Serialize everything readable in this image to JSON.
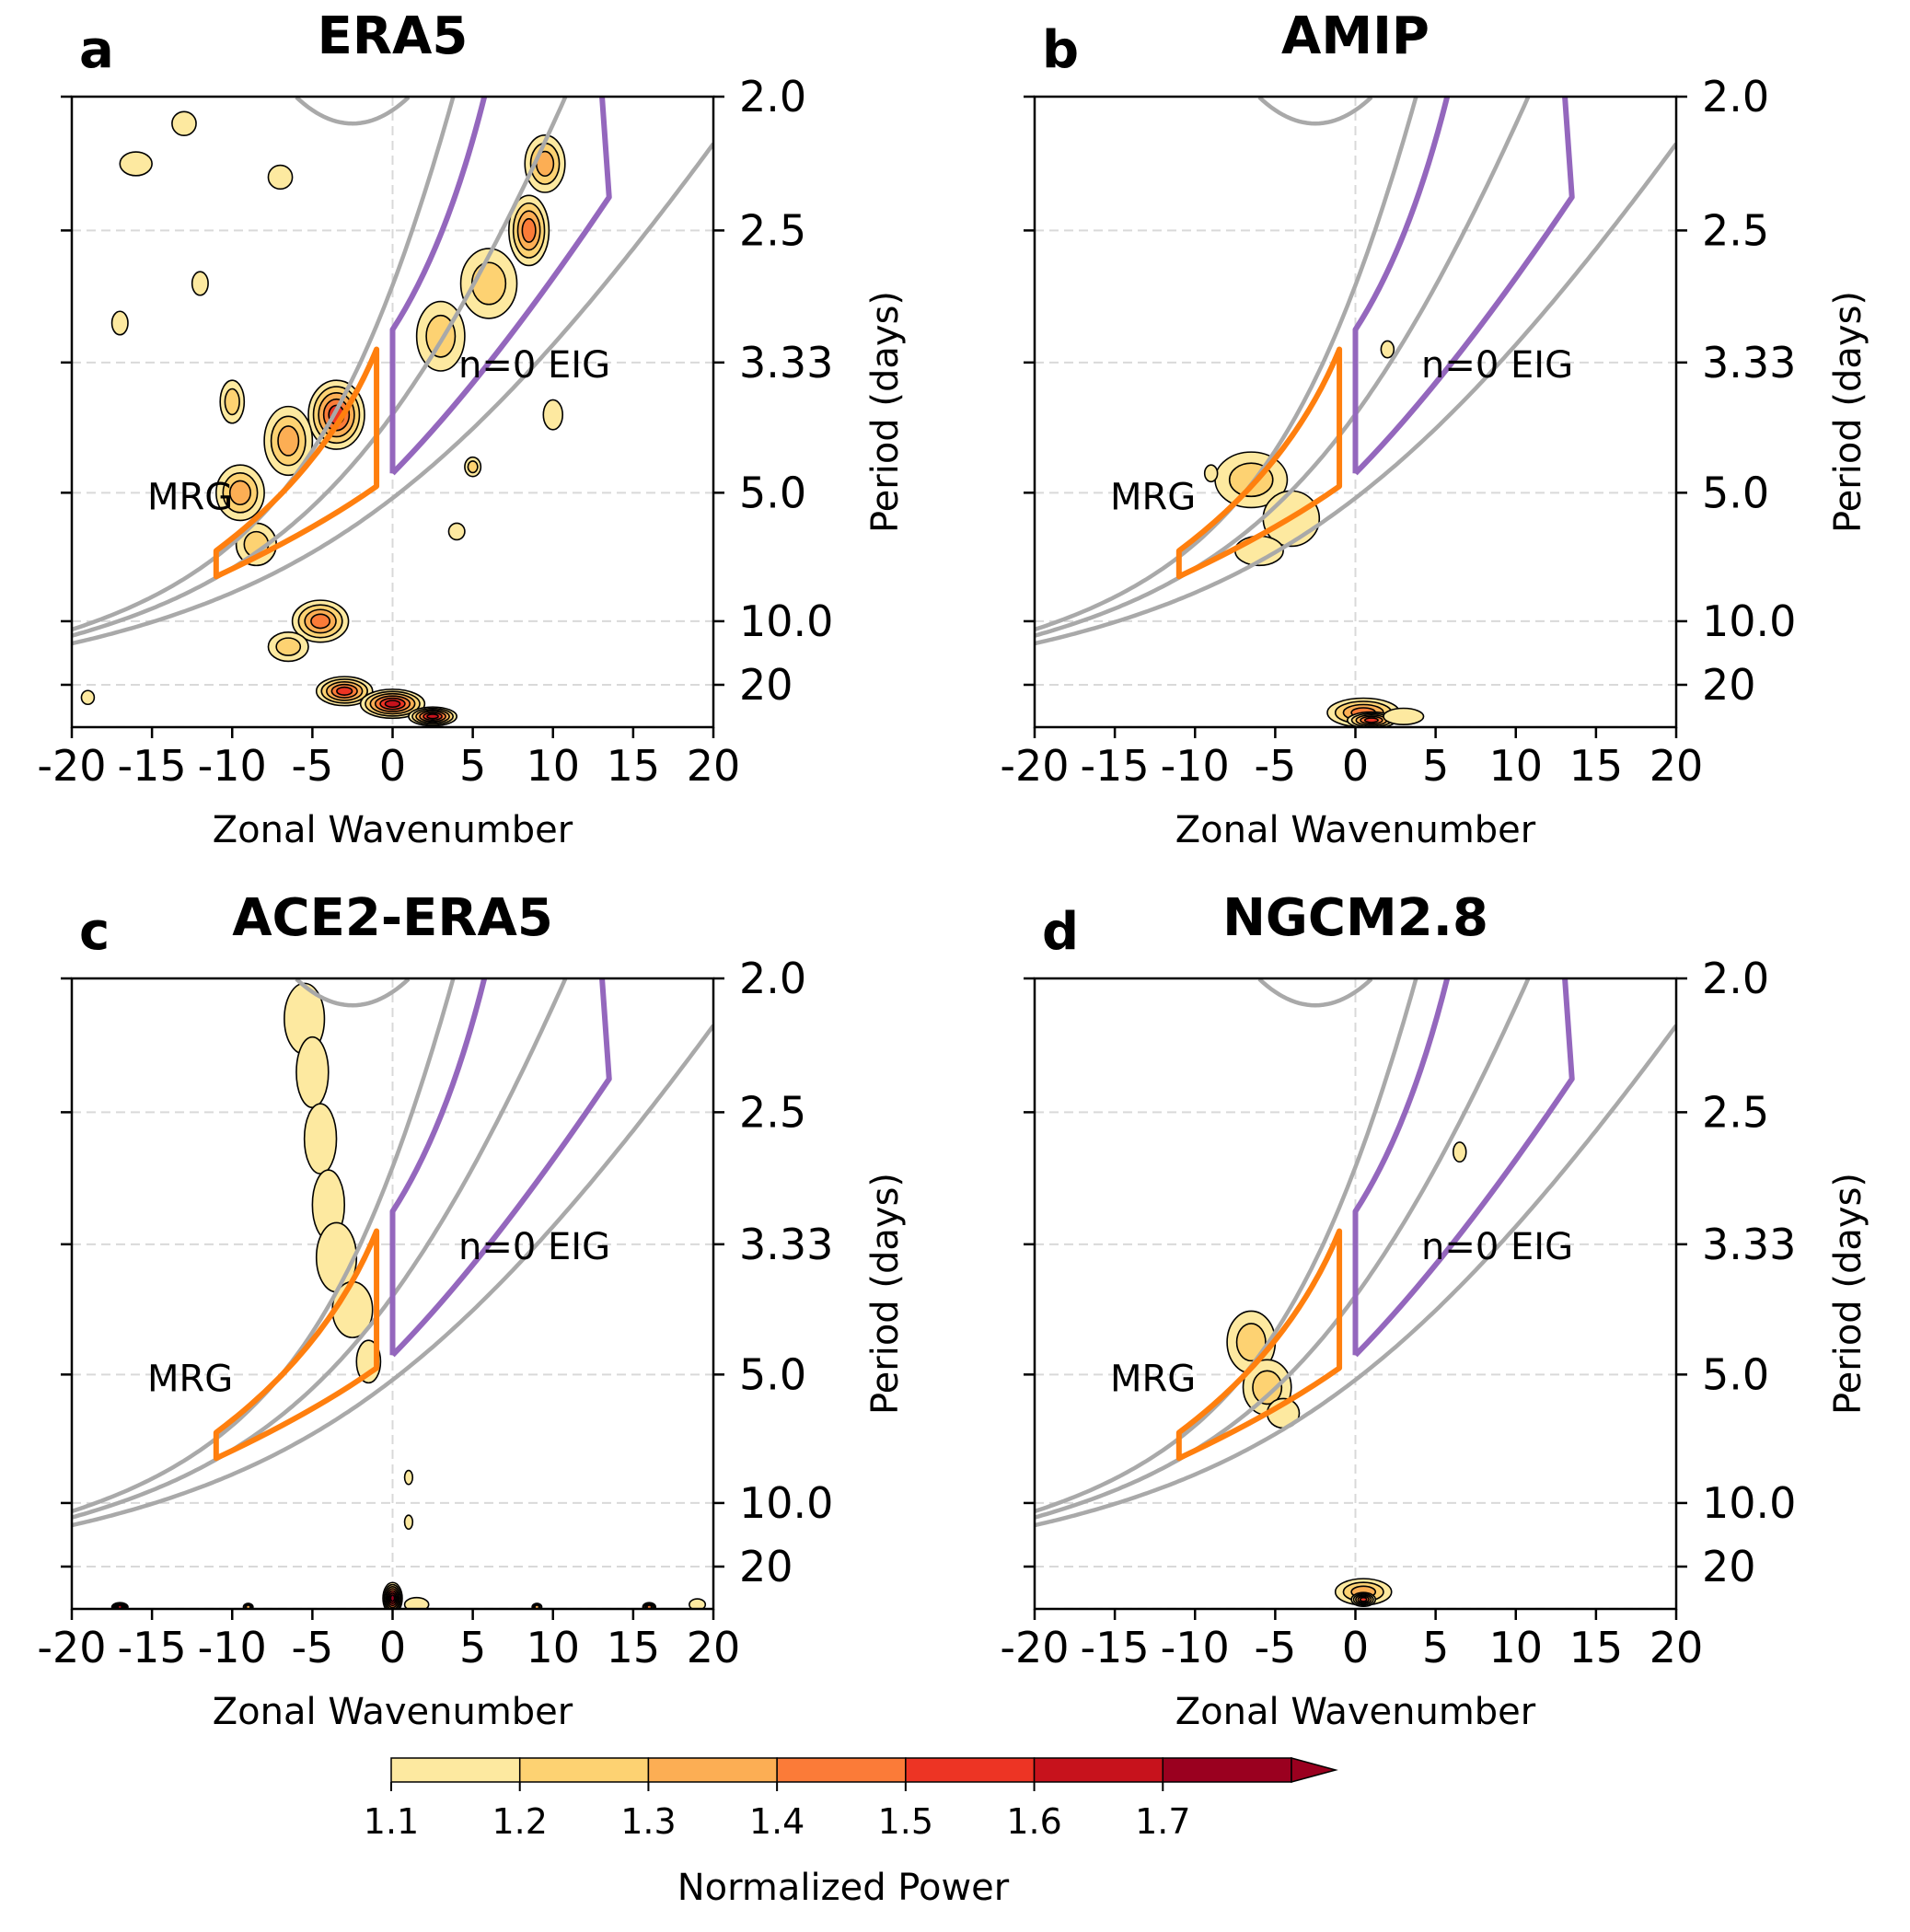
{
  "chart_data": {
    "type": "contour",
    "x": {
      "label": "Zonal Wavenumber",
      "range": [
        -20,
        20
      ],
      "ticks": [
        -20,
        -15,
        -10,
        -5,
        0,
        5,
        10,
        15,
        20
      ]
    },
    "y": {
      "label": "Period (days)",
      "side": "right",
      "ticks": [
        "2.0",
        "2.5",
        "3.33",
        "5.0",
        "10.0",
        "20"
      ],
      "frequency_range_cpd": [
        0.0166,
        0.5
      ]
    },
    "colorbar": {
      "label": "Normalized Power",
      "levels": [
        1.1,
        1.2,
        1.3,
        1.4,
        1.5,
        1.6,
        1.7
      ],
      "tick_labels": [
        "1.1",
        "1.2",
        "1.3",
        "1.4",
        "1.5",
        "1.6",
        "1.7"
      ],
      "colors": [
        "#fde9a0",
        "#fdd272",
        "#fcae54",
        "#fb7b38",
        "#ed3424",
        "#c7121c",
        "#9a001f"
      ],
      "extend": "max"
    },
    "annotations": {
      "mrg": "MRG",
      "eig": "n=0 EIG"
    },
    "box_colors": {
      "mrg": "#ff7f0e",
      "eig": "#9467bd",
      "dispersion": "#a9a9a9"
    },
    "panels": [
      {
        "letter": "a",
        "title": "ERA5",
        "blobs": [
          {
            "x": -3.5,
            "f": 0.26,
            "w": 3.5,
            "h": 0.05,
            "v": 1.55
          },
          {
            "x": -6.5,
            "f": 0.24,
            "w": 3.0,
            "h": 0.05,
            "v": 1.35
          },
          {
            "x": -9.5,
            "f": 0.2,
            "w": 3.0,
            "h": 0.04,
            "v": 1.3
          },
          {
            "x": -8.5,
            "f": 0.16,
            "w": 2.5,
            "h": 0.03,
            "v": 1.25
          },
          {
            "x": -4.5,
            "f": 0.1,
            "w": 3.5,
            "h": 0.03,
            "v": 1.4
          },
          {
            "x": -6.5,
            "f": 0.08,
            "w": 2.5,
            "h": 0.02,
            "v": 1.25
          },
          {
            "x": -3.0,
            "f": 0.045,
            "w": 3.5,
            "h": 0.02,
            "v": 1.55
          },
          {
            "x": 0.0,
            "f": 0.035,
            "w": 4.0,
            "h": 0.02,
            "v": 1.65
          },
          {
            "x": 2.5,
            "f": 0.025,
            "w": 3.0,
            "h": 0.012,
            "v": 1.6
          },
          {
            "x": 3.0,
            "f": 0.32,
            "w": 3.0,
            "h": 0.05,
            "v": 1.2
          },
          {
            "x": 6.0,
            "f": 0.36,
            "w": 3.5,
            "h": 0.05,
            "v": 1.25
          },
          {
            "x": 8.5,
            "f": 0.4,
            "w": 2.5,
            "h": 0.05,
            "v": 1.45
          },
          {
            "x": 9.5,
            "f": 0.45,
            "w": 2.5,
            "h": 0.04,
            "v": 1.3
          },
          {
            "x": -10.0,
            "f": 0.27,
            "w": 1.5,
            "h": 0.03,
            "v": 1.2
          },
          {
            "x": -13.0,
            "f": 0.48,
            "w": 1.5,
            "h": 0.015,
            "v": 1.15
          },
          {
            "x": -16.0,
            "f": 0.45,
            "w": 2.0,
            "h": 0.015,
            "v": 1.15
          },
          {
            "x": -12.0,
            "f": 0.36,
            "w": 1.0,
            "h": 0.015,
            "v": 1.15
          },
          {
            "x": -7.0,
            "f": 0.44,
            "w": 1.5,
            "h": 0.015,
            "v": 1.15
          },
          {
            "x": 5.0,
            "f": 0.22,
            "w": 1.0,
            "h": 0.012,
            "v": 1.25
          },
          {
            "x": 4.0,
            "f": 0.17,
            "w": 1.0,
            "h": 0.01,
            "v": 1.15
          },
          {
            "x": -19.0,
            "f": 0.04,
            "w": 0.8,
            "h": 0.008,
            "v": 1.15
          },
          {
            "x": -17.0,
            "f": 0.33,
            "w": 1.0,
            "h": 0.015,
            "v": 1.15
          },
          {
            "x": 10.0,
            "f": 0.26,
            "w": 1.2,
            "h": 0.02,
            "v": 1.15
          }
        ]
      },
      {
        "letter": "b",
        "title": "AMIP",
        "blobs": [
          {
            "x": -6.5,
            "f": 0.21,
            "w": 4.5,
            "h": 0.04,
            "v": 1.2
          },
          {
            "x": -4.0,
            "f": 0.18,
            "w": 3.5,
            "h": 0.04,
            "v": 1.15
          },
          {
            "x": -6.0,
            "f": 0.155,
            "w": 3.0,
            "h": 0.02,
            "v": 1.15
          },
          {
            "x": 0.5,
            "f": 0.028,
            "w": 4.5,
            "h": 0.02,
            "v": 1.4
          },
          {
            "x": 1.0,
            "f": 0.022,
            "w": 3.0,
            "h": 0.01,
            "v": 1.55
          },
          {
            "x": 3.0,
            "f": 0.025,
            "w": 2.5,
            "h": 0.01,
            "v": 1.15
          },
          {
            "x": 2.0,
            "f": 0.31,
            "w": 0.8,
            "h": 0.01,
            "v": 1.15
          },
          {
            "x": -9.0,
            "f": 0.215,
            "w": 0.8,
            "h": 0.01,
            "v": 1.15
          }
        ]
      },
      {
        "letter": "c",
        "title": "ACE2-ERA5",
        "blobs": [
          {
            "x": -5.5,
            "f": 0.47,
            "w": 2.5,
            "h": 0.05,
            "v": 1.15
          },
          {
            "x": -5.0,
            "f": 0.43,
            "w": 2.0,
            "h": 0.05,
            "v": 1.15
          },
          {
            "x": -4.5,
            "f": 0.38,
            "w": 2.0,
            "h": 0.05,
            "v": 1.15
          },
          {
            "x": -4.0,
            "f": 0.33,
            "w": 2.0,
            "h": 0.05,
            "v": 1.15
          },
          {
            "x": -3.5,
            "f": 0.29,
            "w": 2.5,
            "h": 0.05,
            "v": 1.15
          },
          {
            "x": -2.5,
            "f": 0.25,
            "w": 2.5,
            "h": 0.04,
            "v": 1.15
          },
          {
            "x": -1.5,
            "f": 0.21,
            "w": 1.5,
            "h": 0.03,
            "v": 1.15
          },
          {
            "x": 0.0,
            "f": 0.025,
            "w": 1.2,
            "h": 0.022,
            "v": 1.75
          },
          {
            "x": 1.5,
            "f": 0.02,
            "w": 1.5,
            "h": 0.008,
            "v": 1.15
          },
          {
            "x": -17.0,
            "f": 0.018,
            "w": 1.0,
            "h": 0.004,
            "v": 1.6
          },
          {
            "x": -9.0,
            "f": 0.018,
            "w": 0.6,
            "h": 0.003,
            "v": 1.3
          },
          {
            "x": 9.0,
            "f": 0.018,
            "w": 0.6,
            "h": 0.003,
            "v": 1.3
          },
          {
            "x": 16.0,
            "f": 0.018,
            "w": 0.8,
            "h": 0.004,
            "v": 1.4
          },
          {
            "x": 19.0,
            "f": 0.02,
            "w": 1.0,
            "h": 0.006,
            "v": 1.15
          },
          {
            "x": 1.0,
            "f": 0.12,
            "w": 0.5,
            "h": 0.008,
            "v": 1.15
          },
          {
            "x": 1.0,
            "f": 0.085,
            "w": 0.5,
            "h": 0.008,
            "v": 1.15
          }
        ]
      },
      {
        "letter": "d",
        "title": "NGCM2.8",
        "blobs": [
          {
            "x": -6.5,
            "f": 0.225,
            "w": 3.0,
            "h": 0.045,
            "v": 1.2
          },
          {
            "x": -5.5,
            "f": 0.19,
            "w": 3.0,
            "h": 0.04,
            "v": 1.2
          },
          {
            "x": -4.5,
            "f": 0.17,
            "w": 2.0,
            "h": 0.02,
            "v": 1.15
          },
          {
            "x": 0.5,
            "f": 0.03,
            "w": 3.5,
            "h": 0.018,
            "v": 1.35
          },
          {
            "x": 0.5,
            "f": 0.024,
            "w": 1.5,
            "h": 0.008,
            "v": 1.5
          },
          {
            "x": 6.5,
            "f": 0.37,
            "w": 0.8,
            "h": 0.012,
            "v": 1.15
          }
        ]
      }
    ]
  }
}
